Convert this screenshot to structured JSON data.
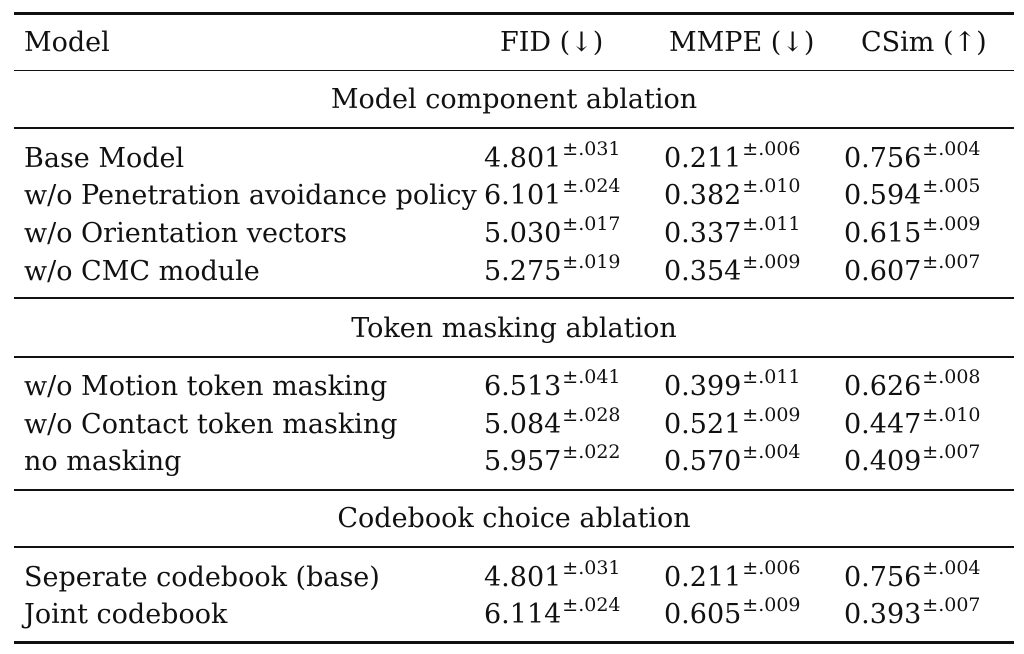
{
  "header": {
    "model": "Model",
    "fid": "FID (↓)",
    "mmpe": "MMPE (↓)",
    "csim": "CSim (↑)"
  },
  "sections": [
    {
      "title": "Model component ablation",
      "rows": [
        {
          "model": "Base Model",
          "fid": "4.801",
          "fid_pm": "±.031",
          "mmpe": "0.211",
          "mmpe_pm": "±.006",
          "csim": "0.756",
          "csim_pm": "±.004"
        },
        {
          "model": "w/o Penetration avoidance policy",
          "fid": "6.101",
          "fid_pm": "±.024",
          "mmpe": "0.382",
          "mmpe_pm": "±.010",
          "csim": "0.594",
          "csim_pm": "±.005"
        },
        {
          "model": "w/o Orientation vectors",
          "fid": "5.030",
          "fid_pm": "±.017",
          "mmpe": "0.337",
          "mmpe_pm": "±.011",
          "csim": "0.615",
          "csim_pm": "±.009"
        },
        {
          "model": "w/o CMC module",
          "fid": "5.275",
          "fid_pm": "±.019",
          "mmpe": "0.354",
          "mmpe_pm": "±.009",
          "csim": "0.607",
          "csim_pm": "±.007"
        }
      ]
    },
    {
      "title": "Token masking ablation",
      "rows": [
        {
          "model": "w/o Motion token masking",
          "fid": "6.513",
          "fid_pm": "±.041",
          "mmpe": "0.399",
          "mmpe_pm": "±.011",
          "csim": "0.626",
          "csim_pm": "±.008"
        },
        {
          "model": "w/o Contact token masking",
          "fid": "5.084",
          "fid_pm": "±.028",
          "mmpe": "0.521",
          "mmpe_pm": "±.009",
          "csim": "0.447",
          "csim_pm": "±.010"
        },
        {
          "model": "no masking",
          "fid": "5.957",
          "fid_pm": "±.022",
          "mmpe": "0.570",
          "mmpe_pm": "±.004",
          "csim": "0.409",
          "csim_pm": "±.007"
        }
      ]
    },
    {
      "title": "Codebook choice ablation",
      "rows": [
        {
          "model": "Seperate codebook (base)",
          "fid": "4.801",
          "fid_pm": "±.031",
          "mmpe": "0.211",
          "mmpe_pm": "±.006",
          "csim": "0.756",
          "csim_pm": "±.004"
        },
        {
          "model": "Joint codebook",
          "fid": "6.114",
          "fid_pm": "±.024",
          "mmpe": "0.605",
          "mmpe_pm": "±.009",
          "csim": "0.393",
          "csim_pm": "±.007"
        }
      ]
    }
  ]
}
